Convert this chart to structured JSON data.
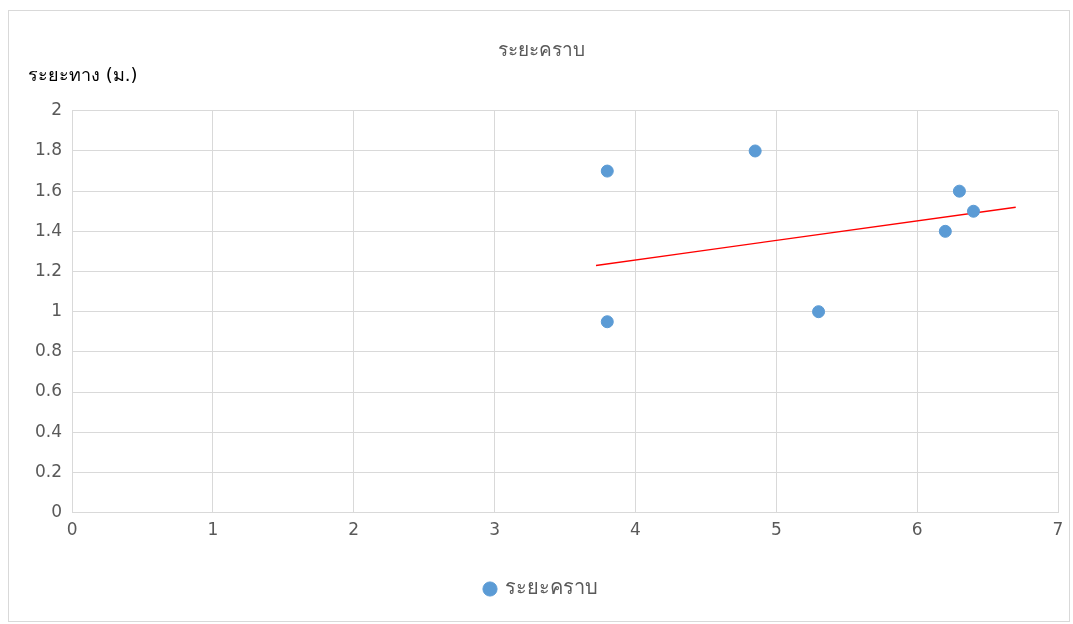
{
  "chart_data": {
    "type": "scatter",
    "title": "ระยะคราบ",
    "ylabel": "ระยะทาง (ม.)",
    "series": [
      {
        "name": "ระยะคราบ",
        "color": "#5b9bd5",
        "x": [
          3.8,
          3.8,
          4.85,
          5.3,
          6.2,
          6.3,
          6.4
        ],
        "values": [
          1.7,
          0.95,
          1.8,
          1.0,
          1.4,
          1.6,
          1.5
        ]
      },
      {
        "type": "line",
        "color": "#ff0000",
        "x": [
          3.72,
          6.7
        ],
        "values": [
          1.23,
          1.52
        ],
        "marker": "none"
      }
    ],
    "xlim": [
      0,
      7
    ],
    "xticks": [
      0,
      1,
      2,
      3,
      4,
      5,
      6,
      7
    ],
    "ylim": [
      0,
      2
    ],
    "yticks": [
      0,
      0.2,
      0.4,
      0.6,
      0.8,
      1,
      1.2,
      1.4,
      1.6,
      1.8,
      2
    ],
    "grid": true,
    "legend": "bottom",
    "marker": "circle"
  }
}
